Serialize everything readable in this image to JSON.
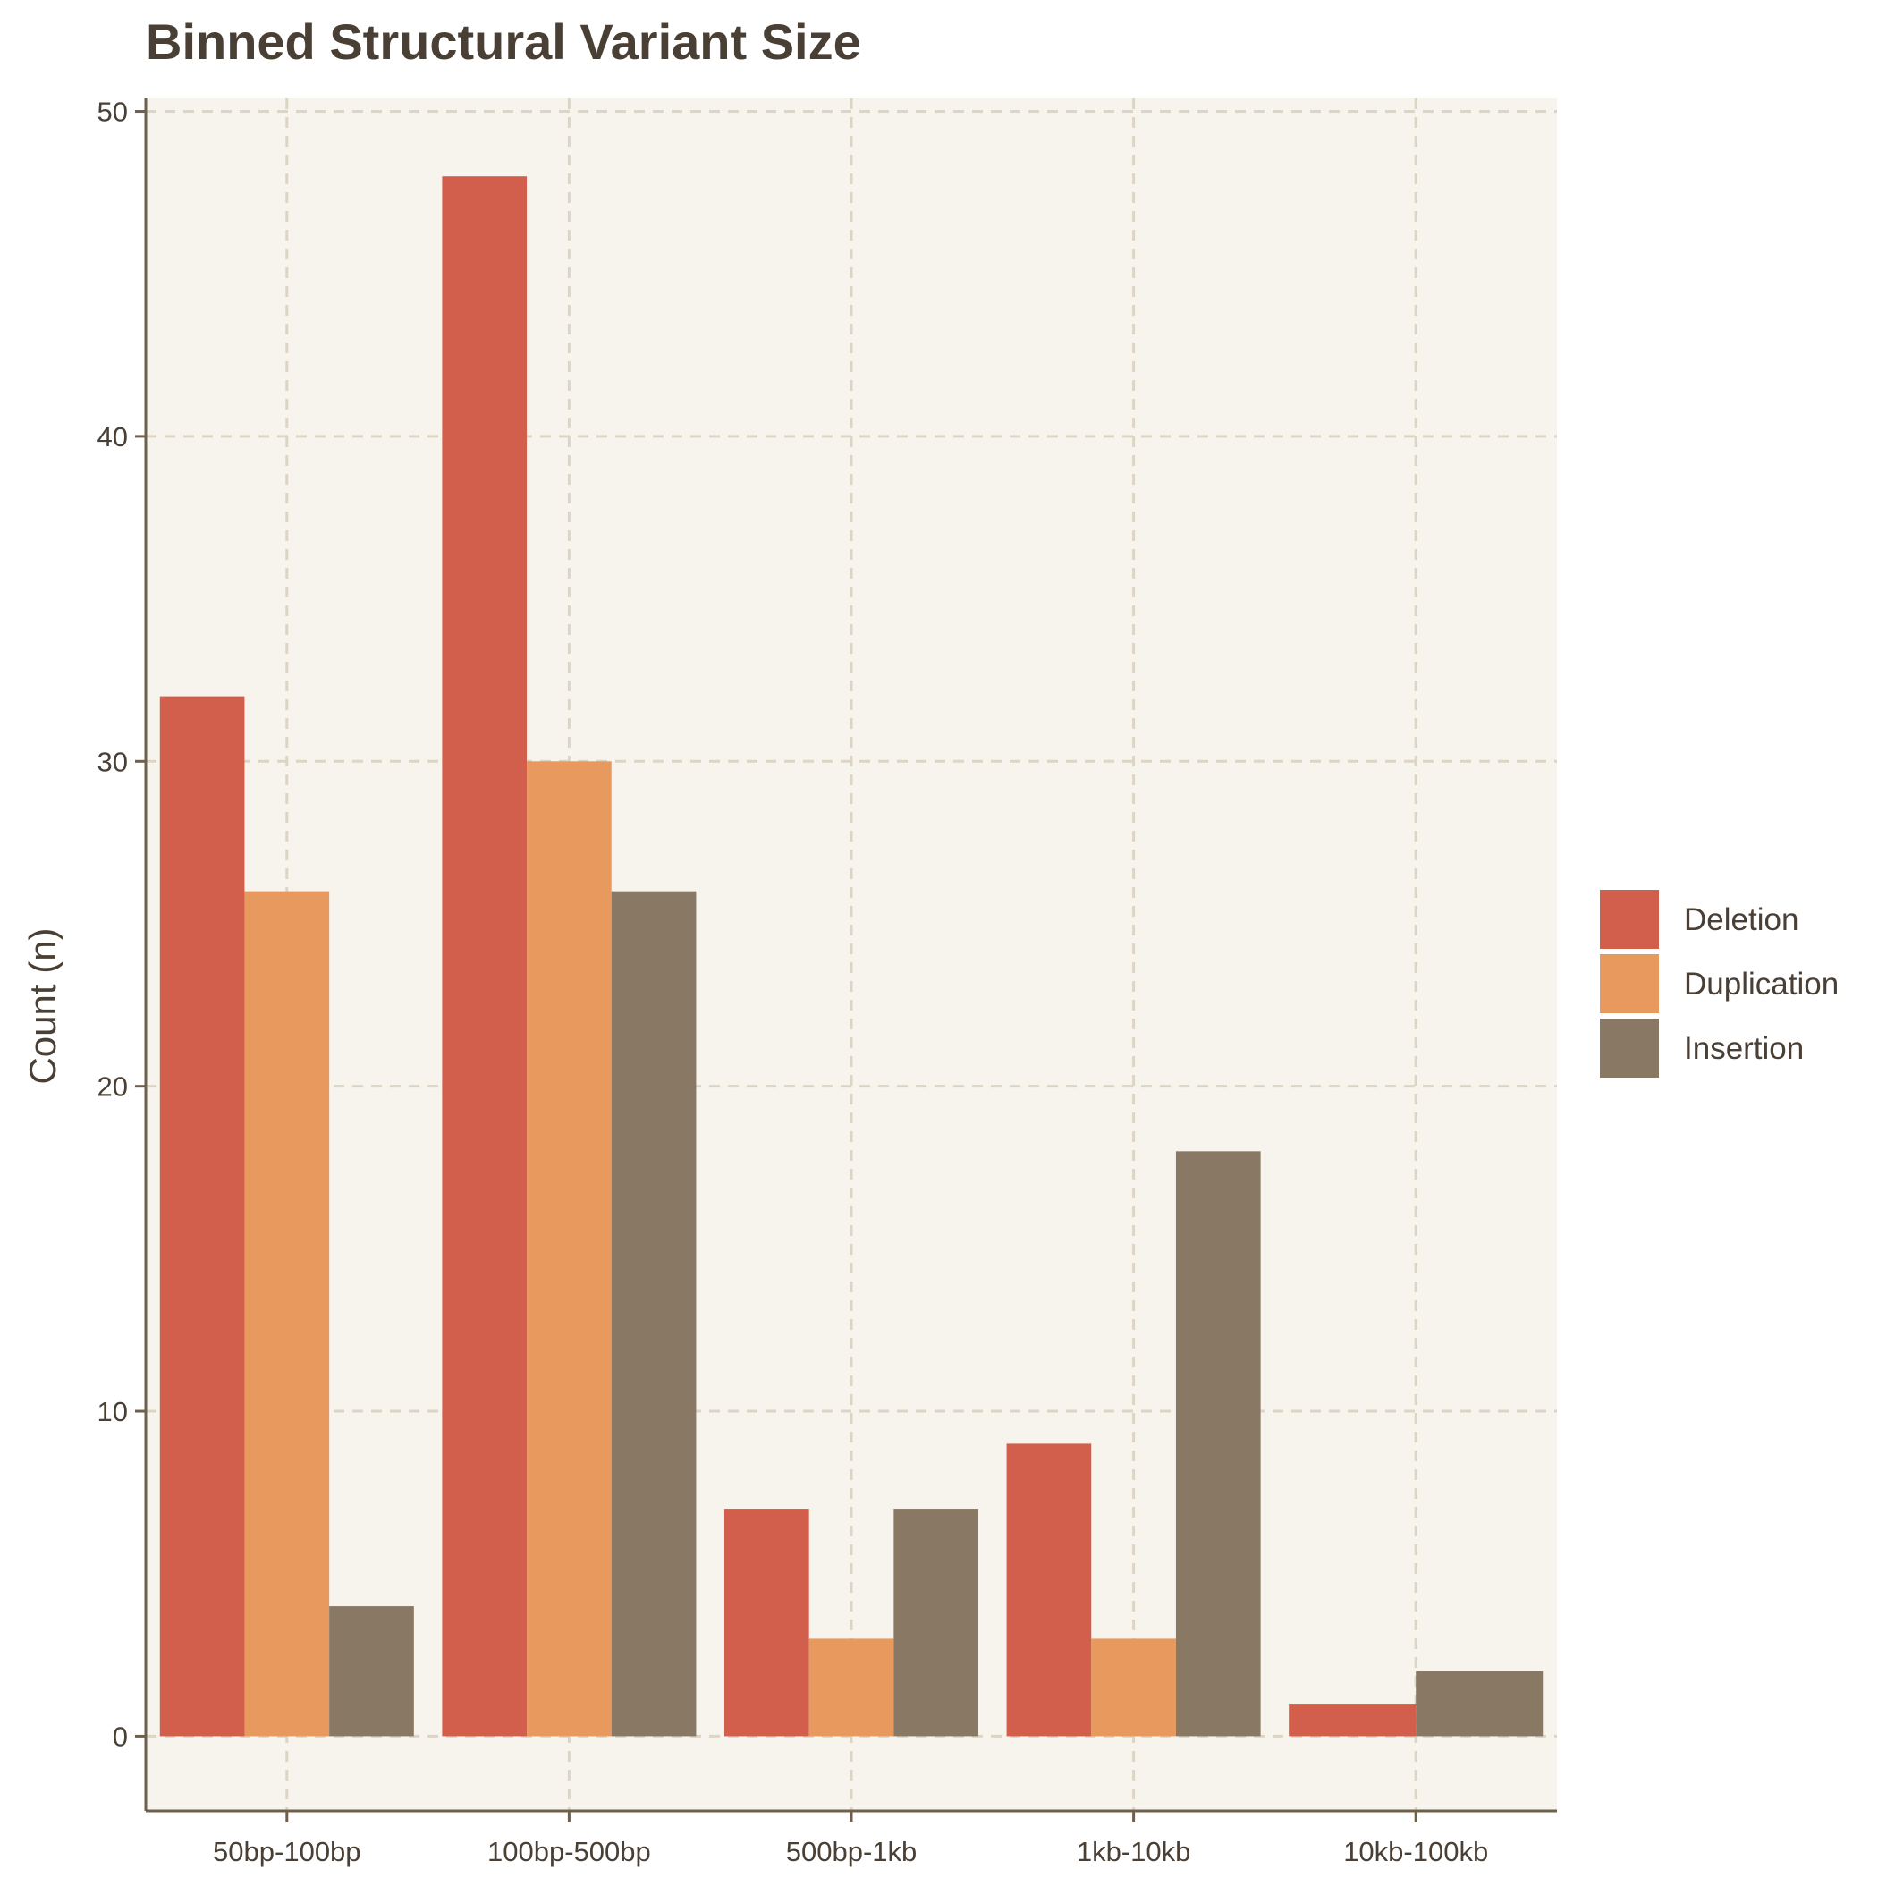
{
  "chart_data": {
    "type": "bar",
    "title": "Binned Structural Variant Size",
    "xlabel": "",
    "ylabel": "Count (n)",
    "categories": [
      "50bp-100bp",
      "100bp-500bp",
      "500bp-1kb",
      "1kb-10kb",
      "10kb-100kb"
    ],
    "series": [
      {
        "name": "Deletion",
        "color": "#d15f4b",
        "values": [
          32,
          48,
          7,
          9,
          1
        ]
      },
      {
        "name": "Duplication",
        "color": "#e8995e",
        "values": [
          26,
          30,
          3,
          3,
          null
        ]
      },
      {
        "name": "Insertion",
        "color": "#897964",
        "values": [
          4,
          26,
          7,
          18,
          2
        ]
      }
    ],
    "ylim": [
      -2.3,
      50.4
    ],
    "yticks": [
      0,
      10,
      20,
      30,
      40,
      50
    ],
    "grid": true,
    "legend_position": "right",
    "colors": {
      "panel_background": "#f7f4ee",
      "grid": "#dcd5c4",
      "axis": "#6f5f4d",
      "text": "#4a3f35"
    }
  }
}
